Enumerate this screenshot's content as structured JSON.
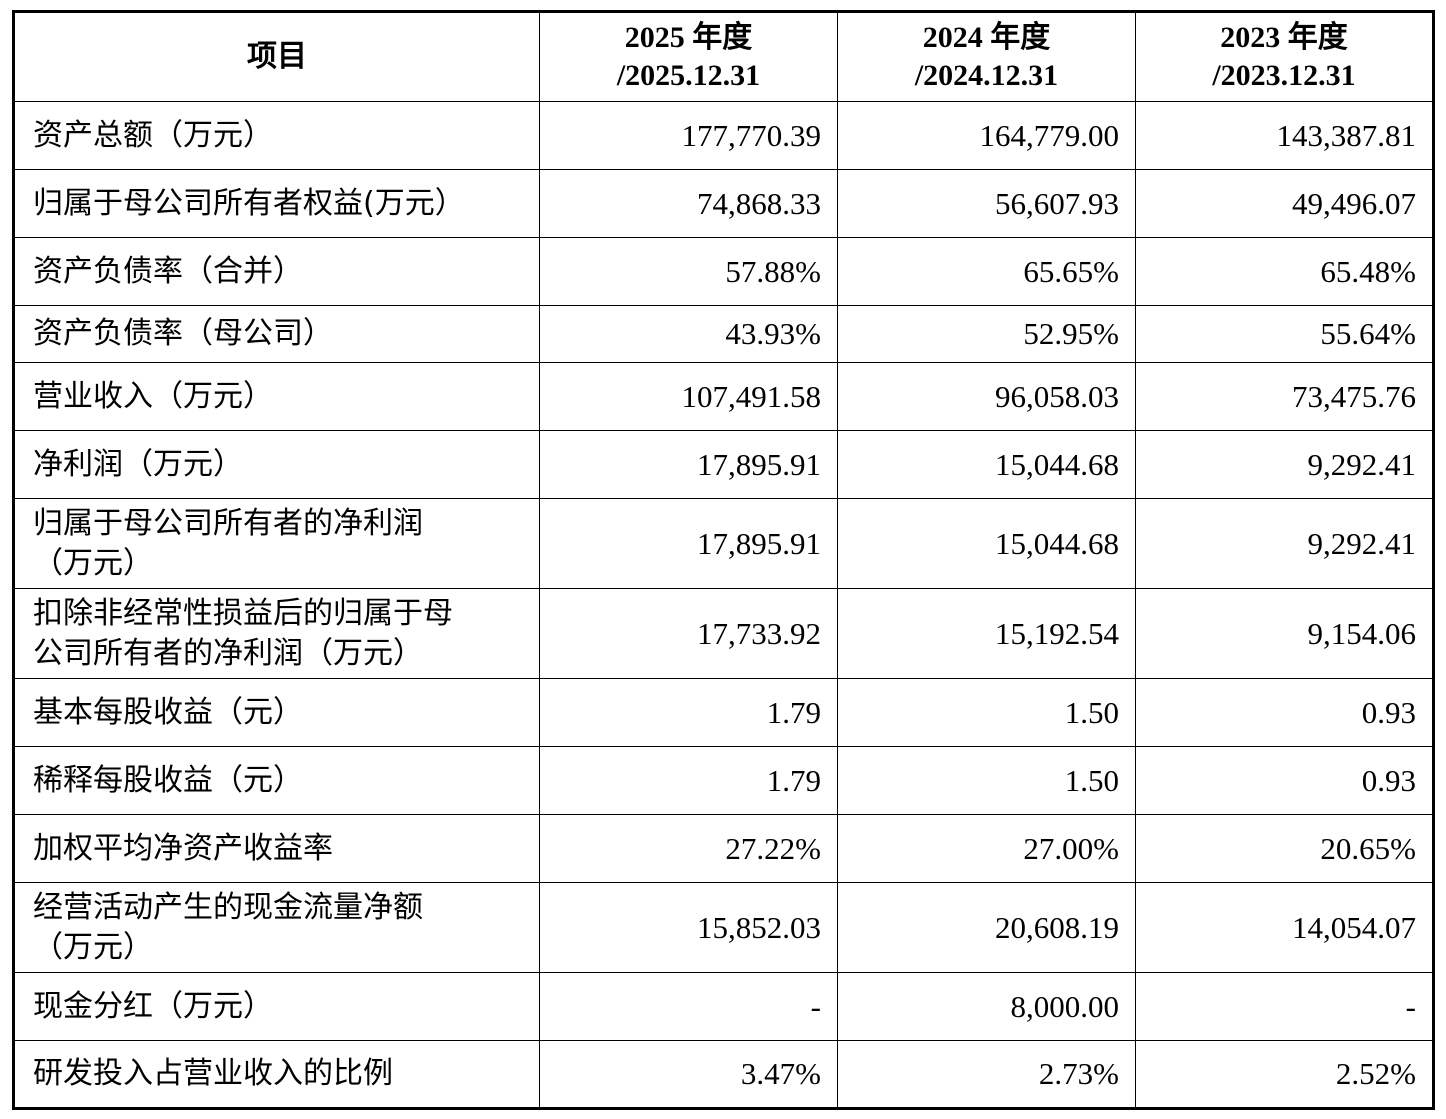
{
  "headers": {
    "item": "项目",
    "col1_line1": "2025 年度",
    "col1_line2": "/2025.12.31",
    "col2_line1": "2024 年度",
    "col2_line2": "/2024.12.31",
    "col3_line1": "2023 年度",
    "col3_line2": "/2023.12.31"
  },
  "rows": [
    {
      "label": "资产总额（万元）",
      "v2025": "177,770.39",
      "v2024": "164,779.00",
      "v2023": "143,387.81"
    },
    {
      "label": "归属于母公司所有者权益(万元）",
      "v2025": "74,868.33",
      "v2024": "56,607.93",
      "v2023": "49,496.07"
    },
    {
      "label": "资产负债率（合并）",
      "v2025": "57.88%",
      "v2024": "65.65%",
      "v2023": "65.48%"
    },
    {
      "label": "资产负债率（母公司）",
      "v2025": "43.93%",
      "v2024": "52.95%",
      "v2023": "55.64%"
    },
    {
      "label": "营业收入（万元）",
      "v2025": "107,491.58",
      "v2024": "96,058.03",
      "v2023": "73,475.76"
    },
    {
      "label": "净利润（万元）",
      "v2025": "17,895.91",
      "v2024": "15,044.68",
      "v2023": "9,292.41"
    },
    {
      "label_line1": "归属于母公司所有者的净利润",
      "label_line2": "（万元）",
      "v2025": "17,895.91",
      "v2024": "15,044.68",
      "v2023": "9,292.41"
    },
    {
      "label_line1": "扣除非经常性损益后的归属于母",
      "label_line2": "公司所有者的净利润（万元）",
      "v2025": "17,733.92",
      "v2024": "15,192.54",
      "v2023": "9,154.06"
    },
    {
      "label": "基本每股收益（元）",
      "v2025": "1.79",
      "v2024": "1.50",
      "v2023": "0.93"
    },
    {
      "label": "稀释每股收益（元）",
      "v2025": "1.79",
      "v2024": "1.50",
      "v2023": "0.93"
    },
    {
      "label": "加权平均净资产收益率",
      "v2025": "27.22%",
      "v2024": "27.00%",
      "v2023": "20.65%"
    },
    {
      "label_line1": "经营活动产生的现金流量净额",
      "label_line2": "（万元）",
      "v2025": "15,852.03",
      "v2024": "20,608.19",
      "v2023": "14,054.07"
    },
    {
      "label": "现金分红（万元）",
      "v2025": "-",
      "v2024": "8,000.00",
      "v2023": "-"
    },
    {
      "label": "研发投入占营业收入的比例",
      "v2025": "3.47%",
      "v2024": "2.73%",
      "v2023": "2.52%"
    }
  ]
}
